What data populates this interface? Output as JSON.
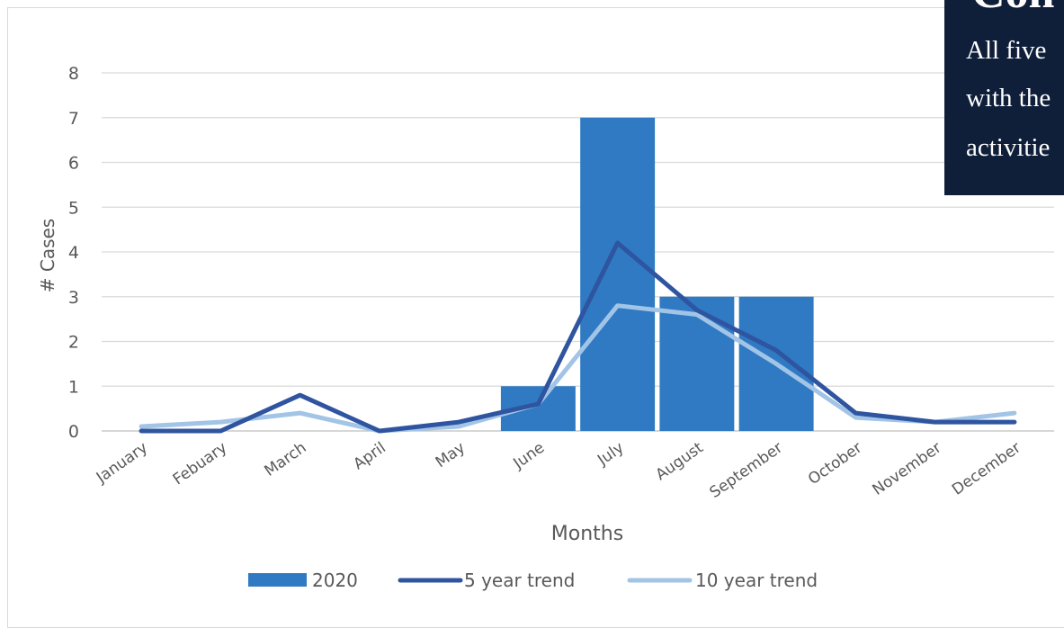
{
  "chart_data": {
    "type": "bar",
    "title": "",
    "xlabel": "Months",
    "ylabel": "# Cases",
    "ylim": [
      0,
      8
    ],
    "yticks": [
      0,
      1,
      2,
      3,
      4,
      5,
      6,
      7,
      8
    ],
    "grid": true,
    "legend_position": "bottom",
    "categories": [
      "January",
      "Febuary",
      "March",
      "April",
      "May",
      "June",
      "July",
      "August",
      "September",
      "October",
      "November",
      "December"
    ],
    "series": [
      {
        "name": "2020",
        "kind": "bar",
        "color": "#2f7ac3",
        "values": [
          0,
          0,
          0,
          0,
          0,
          1,
          7,
          3,
          3,
          0,
          0,
          0
        ]
      },
      {
        "name": "5 year trend",
        "kind": "line",
        "color": "#2f54a0",
        "values": [
          0,
          0,
          0.8,
          0,
          0.2,
          0.6,
          4.2,
          2.7,
          1.8,
          0.4,
          0.2,
          0.2
        ]
      },
      {
        "name": "10 year trend",
        "kind": "line",
        "color": "#a2c4e6",
        "values": [
          0.1,
          0.2,
          0.4,
          0,
          0.1,
          0.6,
          2.8,
          2.6,
          1.5,
          0.3,
          0.2,
          0.4
        ]
      }
    ]
  },
  "overlay": {
    "heading": "Con",
    "lines": [
      "All five",
      "with the",
      "activitie"
    ]
  }
}
